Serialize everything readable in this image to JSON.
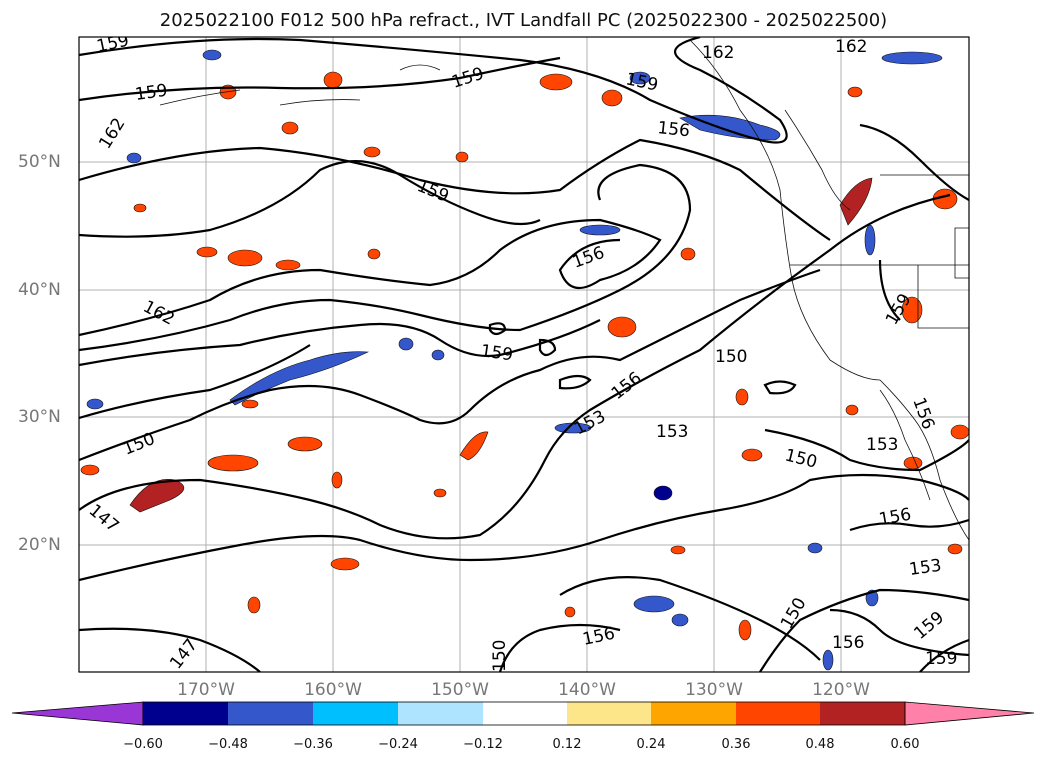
{
  "title": "2025022100 F012 500 hPa refract., IVT Landfall PC (2025022300 - 2025022500)",
  "map": {
    "lat_labels": [
      "50°N",
      "40°N",
      "30°N",
      "20°N"
    ],
    "lon_labels": [
      "170°W",
      "160°W",
      "150°W",
      "140°W",
      "130°W",
      "120°W"
    ],
    "contour_labels": [
      "159",
      "159",
      "159",
      "162",
      "162",
      "162",
      "159",
      "156",
      "159",
      "156",
      "162",
      "159",
      "150",
      "159",
      "156",
      "153",
      "153",
      "150",
      "153",
      "150",
      "156",
      "153",
      "156",
      "150",
      "156",
      "159",
      "159",
      "147",
      "147",
      "150",
      "156"
    ],
    "grid": true
  },
  "colorbar": {
    "ticks": [
      "−0.60",
      "−0.48",
      "−0.36",
      "−0.24",
      "−0.12",
      "0.12",
      "0.24",
      "0.36",
      "0.48",
      "0.60"
    ],
    "colors": [
      "#9a35d6",
      "#00008f",
      "#3458cc",
      "#00bfff",
      "#aee4ff",
      "#ffffff",
      "#fde68a",
      "#ffa500",
      "#ff4500",
      "#b22222",
      "#ff80a8"
    ]
  }
}
